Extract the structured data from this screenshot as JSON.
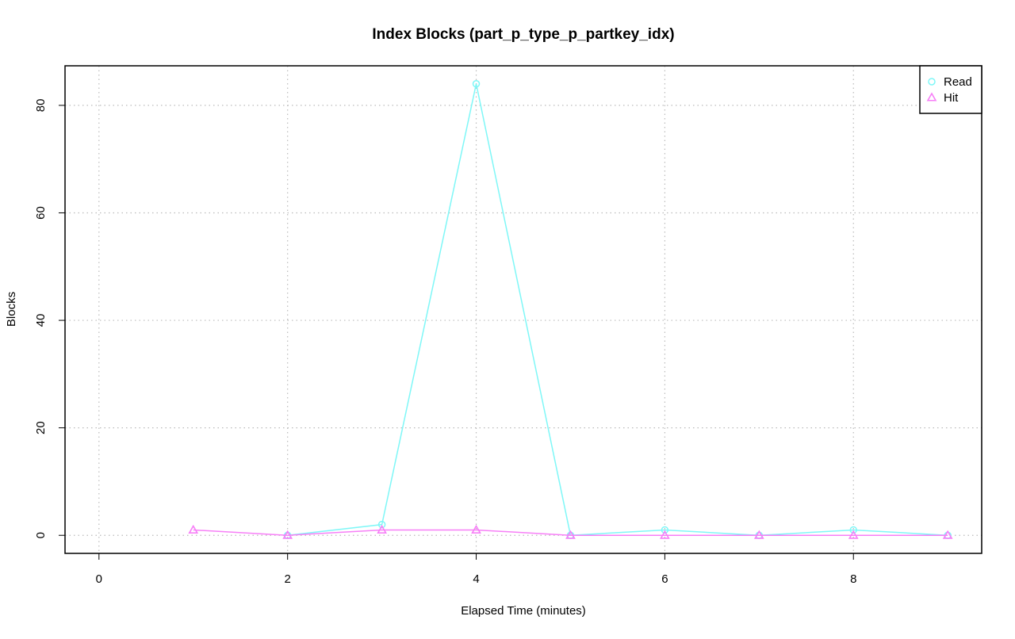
{
  "chart_data": {
    "type": "line",
    "title": "Index Blocks (part_p_type_p_partkey_idx)",
    "x_label": "Elapsed Time (minutes)",
    "y_label": "Blocks",
    "x": [
      1,
      2,
      3,
      4,
      5,
      6,
      7,
      8,
      9
    ],
    "series": [
      {
        "name": "Read",
        "color": "#7ff7f7",
        "marker": "circle",
        "values": [
          null,
          0,
          2,
          84,
          0,
          1,
          0,
          1,
          0
        ]
      },
      {
        "name": "Hit",
        "color": "#f77ff7",
        "marker": "triangle",
        "values": [
          1,
          0,
          1,
          1,
          0,
          0,
          0,
          0,
          0
        ]
      }
    ],
    "xlim": [
      -0.36,
      9.36
    ],
    "ylim": [
      -3.36,
      87.36
    ],
    "xticks": [
      0,
      2,
      4,
      6,
      8
    ],
    "yticks": [
      0,
      20,
      40,
      60,
      80
    ],
    "grid": true,
    "legend": "top-right"
  }
}
